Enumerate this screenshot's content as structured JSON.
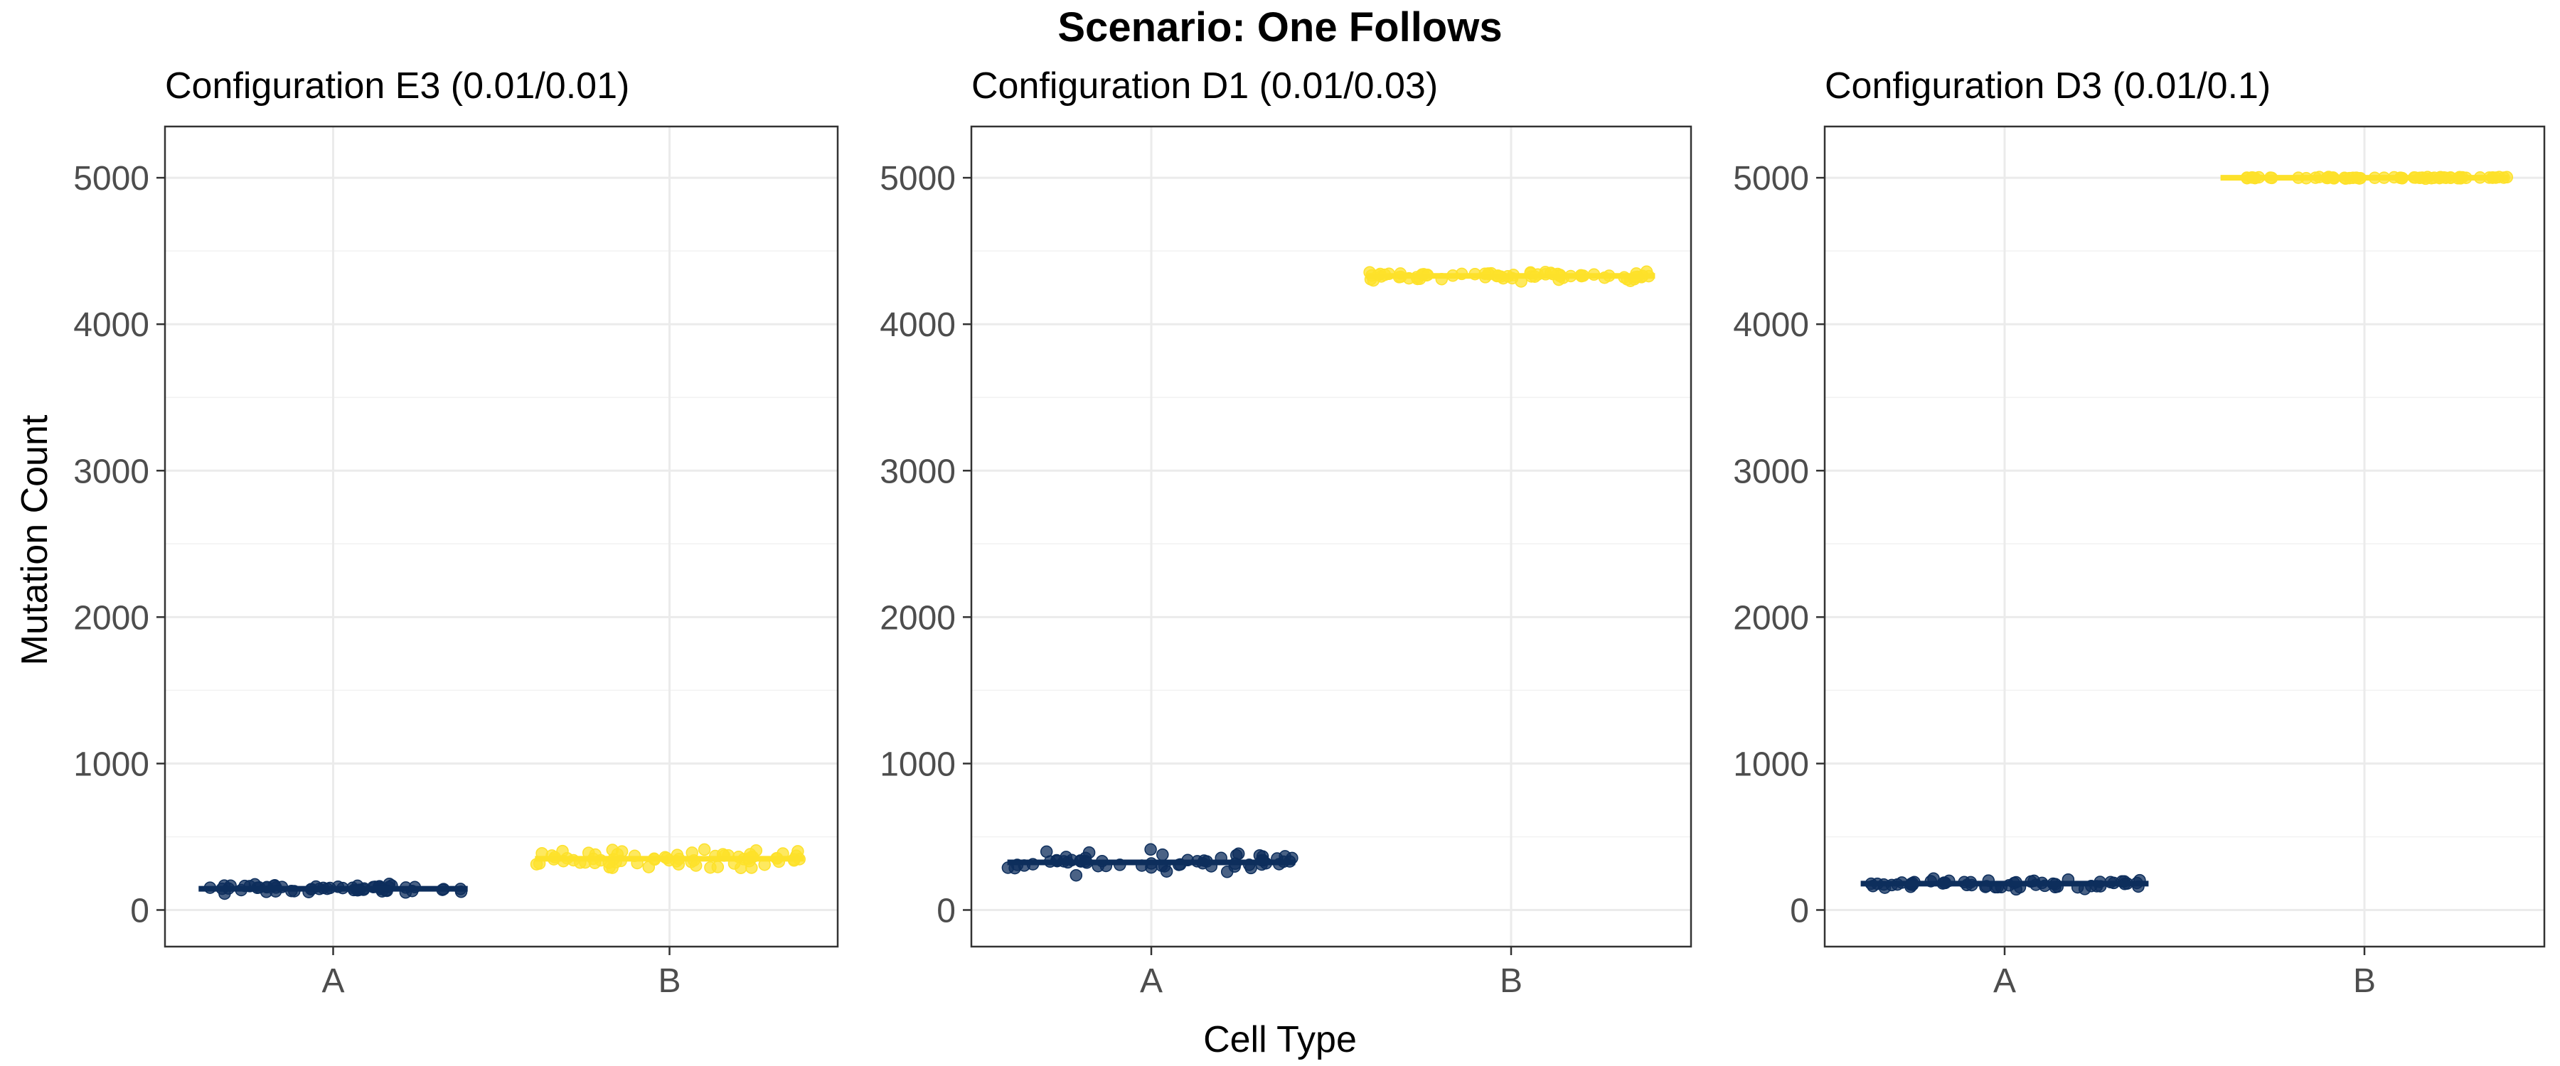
{
  "figure": {
    "title": "Scenario: One Follows",
    "xlabel": "Cell Type",
    "ylabel": "Mutation Count"
  },
  "colors": {
    "A": "#0d2e5c",
    "B": "#fde12a"
  },
  "chart_data": [
    {
      "type": "scatter",
      "title": "Configuration E3 (0.01/0.01)",
      "categories": [
        "A",
        "B"
      ],
      "ylim": [
        -250,
        5350
      ],
      "yticks": [
        0,
        1000,
        2000,
        3000,
        4000,
        5000
      ],
      "grid": true,
      "series": [
        {
          "category": "A",
          "mean": 145,
          "spread": 45,
          "n": 60
        },
        {
          "category": "B",
          "mean": 350,
          "spread": 90,
          "n": 70
        }
      ]
    },
    {
      "type": "scatter",
      "title": "Configuration D1 (0.01/0.03)",
      "categories": [
        "A",
        "B"
      ],
      "ylim": [
        -250,
        5350
      ],
      "yticks": [
        0,
        1000,
        2000,
        3000,
        4000,
        5000
      ],
      "grid": true,
      "series": [
        {
          "category": "A",
          "mean": 325,
          "spread": 110,
          "n": 60
        },
        {
          "category": "B",
          "mean": 4330,
          "spread": 45,
          "n": 70
        }
      ]
    },
    {
      "type": "scatter",
      "title": "Configuration D3 (0.01/0.1)",
      "categories": [
        "A",
        "B"
      ],
      "ylim": [
        -250,
        5350
      ],
      "yticks": [
        0,
        1000,
        2000,
        3000,
        4000,
        5000
      ],
      "grid": true,
      "series": [
        {
          "category": "A",
          "mean": 180,
          "spread": 45,
          "n": 60
        },
        {
          "category": "B",
          "mean": 5000,
          "spread": 8,
          "n": 60
        }
      ]
    }
  ]
}
